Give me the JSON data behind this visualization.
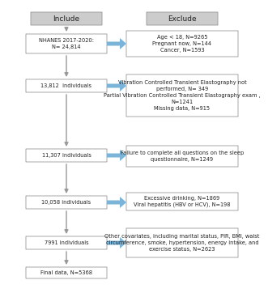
{
  "title_include": "Include",
  "title_exclude": "Exclude",
  "left_boxes": [
    {
      "text": "NHANES 2017-2020:\nN= 24,814"
    },
    {
      "text": "13,812  individuals"
    },
    {
      "text": "11,307 individuals"
    },
    {
      "text": "10,058 individuals"
    },
    {
      "text": "7991 individuals"
    },
    {
      "text": "Final data, N=5368"
    }
  ],
  "right_boxes": [
    {
      "text": "Age < 18, N=9265\nPregnant now, N=144\nCancer, N=1593"
    },
    {
      "text": "Vibration Controlled Transient Elastography not\nperformed, N= 349\nPartial Vibration Controlled Transient Elastography exam ,\nN=1241\nMissing data, N=915"
    },
    {
      "text": "Failure to complete all questions on the sleep\nquestionnaire, N=1249"
    },
    {
      "text": "Excessive drinking, N=1869\nViral hepatitis (HBV or HCV), N=198"
    },
    {
      "text": "Other covariates, including marital status, PIR, BMI, waist\ncircumference, smoke, hypertension, energy intake, and\nexercise status, N=2623"
    }
  ],
  "bg_color": "#ffffff",
  "header_fill": "#cccccc",
  "left_box_fill": "#ffffff",
  "right_box_fill": "#ffffff",
  "arrow_color": "#7ab4d8",
  "down_arrow_color": "#999999",
  "box_edge_color": "#999999",
  "header_edge_color": "#999999",
  "text_color": "#222222",
  "font_size": 4.8,
  "header_font_size": 6.5
}
